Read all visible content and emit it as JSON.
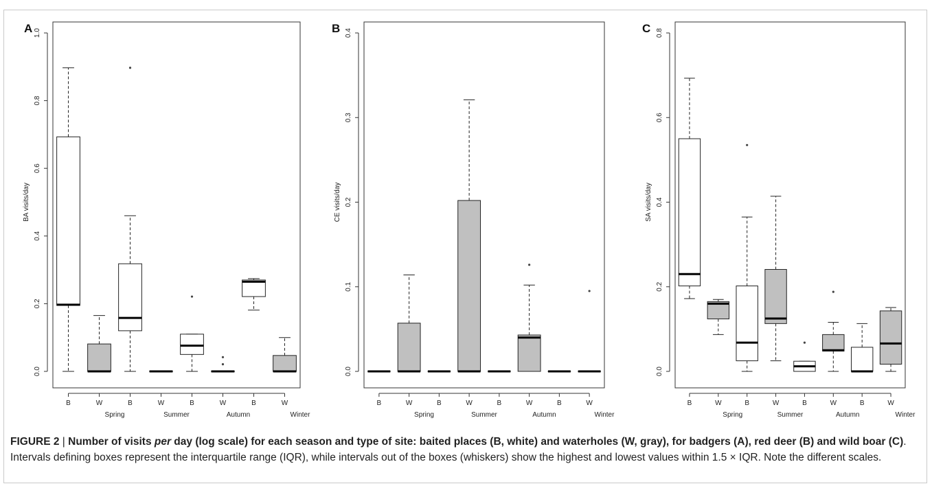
{
  "chart_data": [
    {
      "type": "box",
      "panel_label": "A",
      "ylabel": "BA visits/day",
      "ylim": [
        0,
        1.0
      ],
      "yticks": [
        "0.0",
        "0.2",
        "0.4",
        "0.6",
        "0.8",
        "1.0"
      ],
      "ytick_values": [
        0,
        0.2,
        0.4,
        0.6,
        0.8,
        1.0
      ],
      "categories": [
        "B",
        "W",
        "B",
        "W",
        "B",
        "W",
        "B",
        "W"
      ],
      "season_labels": [
        "Spring",
        "Summer",
        "Autumn",
        "Winter"
      ],
      "boxes": [
        {
          "site": "B",
          "min": 0.0,
          "q1": 0.195,
          "median": 0.197,
          "q3": 0.693,
          "max": 0.897,
          "outliers": []
        },
        {
          "site": "W",
          "min": 0.0,
          "q1": 0.0,
          "median": 0.0,
          "q3": 0.081,
          "max": 0.165,
          "outliers": []
        },
        {
          "site": "B",
          "min": 0.0,
          "q1": 0.12,
          "median": 0.158,
          "q3": 0.318,
          "max": 0.46,
          "outliers": [
            0.897
          ]
        },
        {
          "site": "W",
          "min": 0.0,
          "q1": 0.0,
          "median": 0.0,
          "q3": 0.0,
          "max": 0.0,
          "outliers": []
        },
        {
          "site": "B",
          "min": 0.0,
          "q1": 0.05,
          "median": 0.076,
          "q3": 0.11,
          "max": 0.11,
          "outliers": [
            0.221
          ]
        },
        {
          "site": "W",
          "min": 0.0,
          "q1": 0.0,
          "median": 0.0,
          "q3": 0.0,
          "max": 0.0,
          "outliers": [
            0.021,
            0.042
          ]
        },
        {
          "site": "B",
          "min": 0.181,
          "q1": 0.221,
          "median": 0.265,
          "q3": 0.27,
          "max": 0.274,
          "outliers": []
        },
        {
          "site": "W",
          "min": 0.0,
          "q1": 0.0,
          "median": 0.0,
          "q3": 0.047,
          "max": 0.1,
          "outliers": []
        }
      ]
    },
    {
      "type": "box",
      "panel_label": "B",
      "ylabel": "CE visits/day",
      "ylim": [
        0,
        0.4
      ],
      "yticks": [
        "0.0",
        "0.1",
        "0.2",
        "0.3",
        "0.4"
      ],
      "ytick_values": [
        0,
        0.1,
        0.2,
        0.3,
        0.4
      ],
      "categories": [
        "B",
        "W",
        "B",
        "W",
        "B",
        "W",
        "B",
        "W"
      ],
      "season_labels": [
        "Spring",
        "Summer",
        "Autumn",
        "Winter"
      ],
      "boxes": [
        {
          "site": "B",
          "min": 0.0,
          "q1": 0.0,
          "median": 0.0,
          "q3": 0.0,
          "max": 0.0,
          "outliers": []
        },
        {
          "site": "W",
          "min": 0.0,
          "q1": 0.0,
          "median": 0.0,
          "q3": 0.057,
          "max": 0.114,
          "outliers": []
        },
        {
          "site": "B",
          "min": 0.0,
          "q1": 0.0,
          "median": 0.0,
          "q3": 0.0,
          "max": 0.0,
          "outliers": []
        },
        {
          "site": "W",
          "min": 0.0,
          "q1": 0.0,
          "median": 0.0,
          "q3": 0.202,
          "max": 0.321,
          "outliers": []
        },
        {
          "site": "B",
          "min": 0.0,
          "q1": 0.0,
          "median": 0.0,
          "q3": 0.0,
          "max": 0.0,
          "outliers": []
        },
        {
          "site": "W",
          "min": 0.0,
          "q1": 0.0,
          "median": 0.04,
          "q3": 0.043,
          "max": 0.102,
          "outliers": [
            0.126
          ]
        },
        {
          "site": "B",
          "min": 0.0,
          "q1": 0.0,
          "median": 0.0,
          "q3": 0.0,
          "max": 0.0,
          "outliers": []
        },
        {
          "site": "W",
          "min": 0.0,
          "q1": 0.0,
          "median": 0.0,
          "q3": 0.0,
          "max": 0.0,
          "outliers": [
            0.095
          ]
        }
      ]
    },
    {
      "type": "box",
      "panel_label": "C",
      "ylabel": "SA visits/day",
      "ylim": [
        0,
        0.8
      ],
      "yticks": [
        "0.0",
        "0.2",
        "0.4",
        "0.6",
        "0.8"
      ],
      "ytick_values": [
        0,
        0.2,
        0.4,
        0.6,
        0.8
      ],
      "categories": [
        "B",
        "W",
        "B",
        "W",
        "B",
        "W",
        "B",
        "W"
      ],
      "season_labels": [
        "Spring",
        "Summer",
        "Autumn",
        "Winter"
      ],
      "boxes": [
        {
          "site": "B",
          "min": 0.172,
          "q1": 0.202,
          "median": 0.23,
          "q3": 0.55,
          "max": 0.693,
          "outliers": []
        },
        {
          "site": "W",
          "min": 0.087,
          "q1": 0.124,
          "median": 0.16,
          "q3": 0.165,
          "max": 0.17,
          "outliers": []
        },
        {
          "site": "B",
          "min": 0.0,
          "q1": 0.025,
          "median": 0.068,
          "q3": 0.202,
          "max": 0.365,
          "outliers": [
            0.535
          ]
        },
        {
          "site": "W",
          "min": 0.025,
          "q1": 0.113,
          "median": 0.125,
          "q3": 0.241,
          "max": 0.414,
          "outliers": []
        },
        {
          "site": "B",
          "min": 0.0,
          "q1": 0.0,
          "median": 0.012,
          "q3": 0.024,
          "max": 0.024,
          "outliers": [
            0.068
          ]
        },
        {
          "site": "W",
          "min": 0.0,
          "q1": 0.048,
          "median": 0.05,
          "q3": 0.087,
          "max": 0.116,
          "outliers": [
            0.188
          ]
        },
        {
          "site": "B",
          "min": 0.0,
          "q1": 0.0,
          "median": 0.0,
          "q3": 0.057,
          "max": 0.113,
          "outliers": []
        },
        {
          "site": "W",
          "min": 0.0,
          "q1": 0.017,
          "median": 0.066,
          "q3": 0.143,
          "max": 0.151,
          "outliers": []
        }
      ]
    }
  ],
  "colors": {
    "B": "#ffffff",
    "W": "#c0c0c0"
  },
  "caption": {
    "figure": "FIGURE 2",
    "sep": " | ",
    "bold_a": "Number of visits ",
    "bold_italic": "per",
    "bold_b": " day (log scale) for each season and type of site: baited places (B, white) and waterholes (W, gray), for badgers (A), red deer (B) and wild boar (C)",
    "rest": ". Intervals defining boxes represent the interquartile range (IQR), while intervals out of the boxes (whiskers) show the highest and lowest values within 1.5 × IQR. Note the different scales."
  }
}
